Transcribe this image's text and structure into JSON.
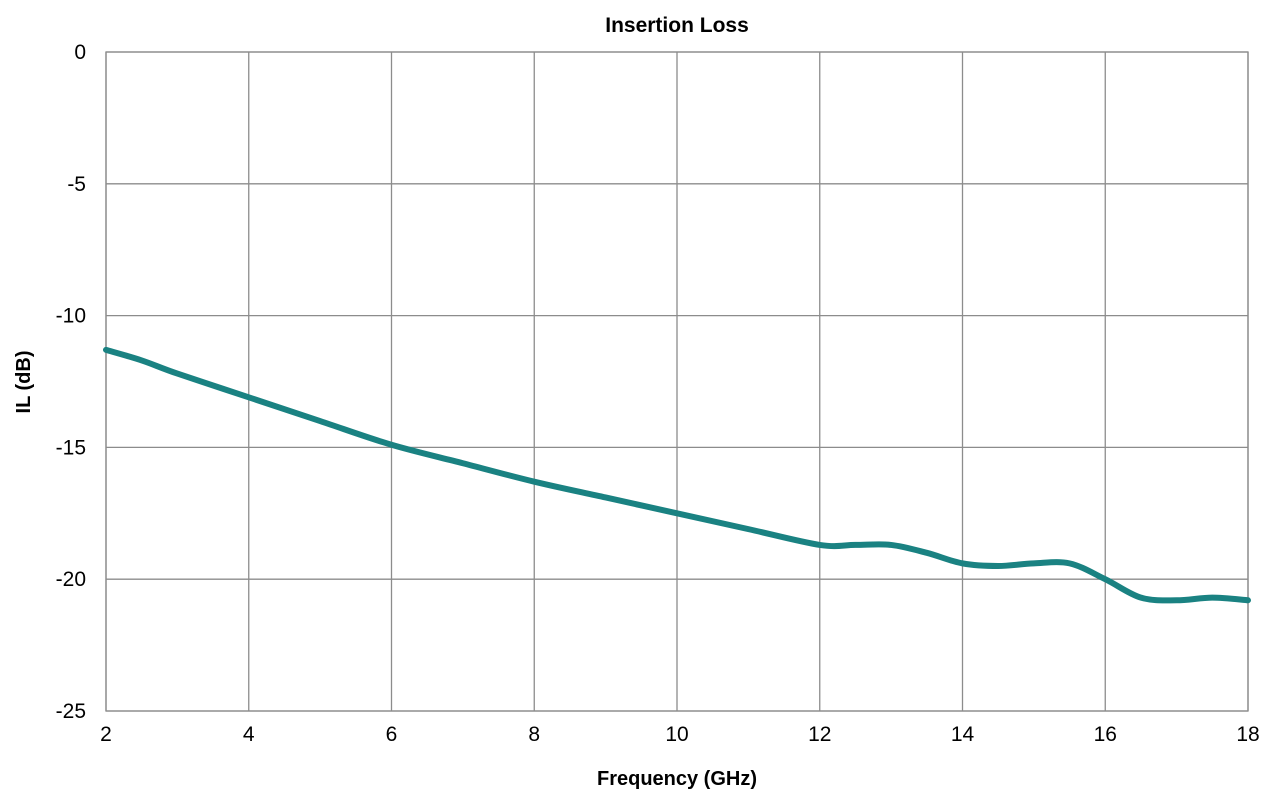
{
  "chart_data": {
    "type": "line",
    "title": "Insertion Loss",
    "xlabel": "Frequency (GHz)",
    "ylabel": "IL (dB)",
    "xlim": [
      2,
      18
    ],
    "ylim": [
      -25,
      0
    ],
    "xticks": [
      2,
      4,
      6,
      8,
      10,
      12,
      14,
      16,
      18
    ],
    "yticks": [
      0,
      -5,
      -10,
      -15,
      -20,
      -25
    ],
    "grid": true,
    "legend": "none",
    "colors": {
      "series": "#1a8282",
      "grid": "#8c8c8c"
    },
    "series": [
      {
        "x": [
          2,
          2.5,
          3,
          4,
          5,
          6,
          7,
          8,
          9,
          10,
          11,
          12,
          12.5,
          13,
          13.5,
          14,
          14.5,
          15,
          15.5,
          16,
          16.5,
          17,
          17.5,
          18
        ],
        "y": [
          -11.3,
          -11.7,
          -12.2,
          -13.1,
          -14.0,
          -14.9,
          -15.6,
          -16.3,
          -16.9,
          -17.5,
          -18.1,
          -18.7,
          -18.7,
          -18.7,
          -19.0,
          -19.4,
          -19.5,
          -19.4,
          -19.4,
          -20.0,
          -20.7,
          -20.8,
          -20.7,
          -20.8
        ]
      }
    ]
  }
}
